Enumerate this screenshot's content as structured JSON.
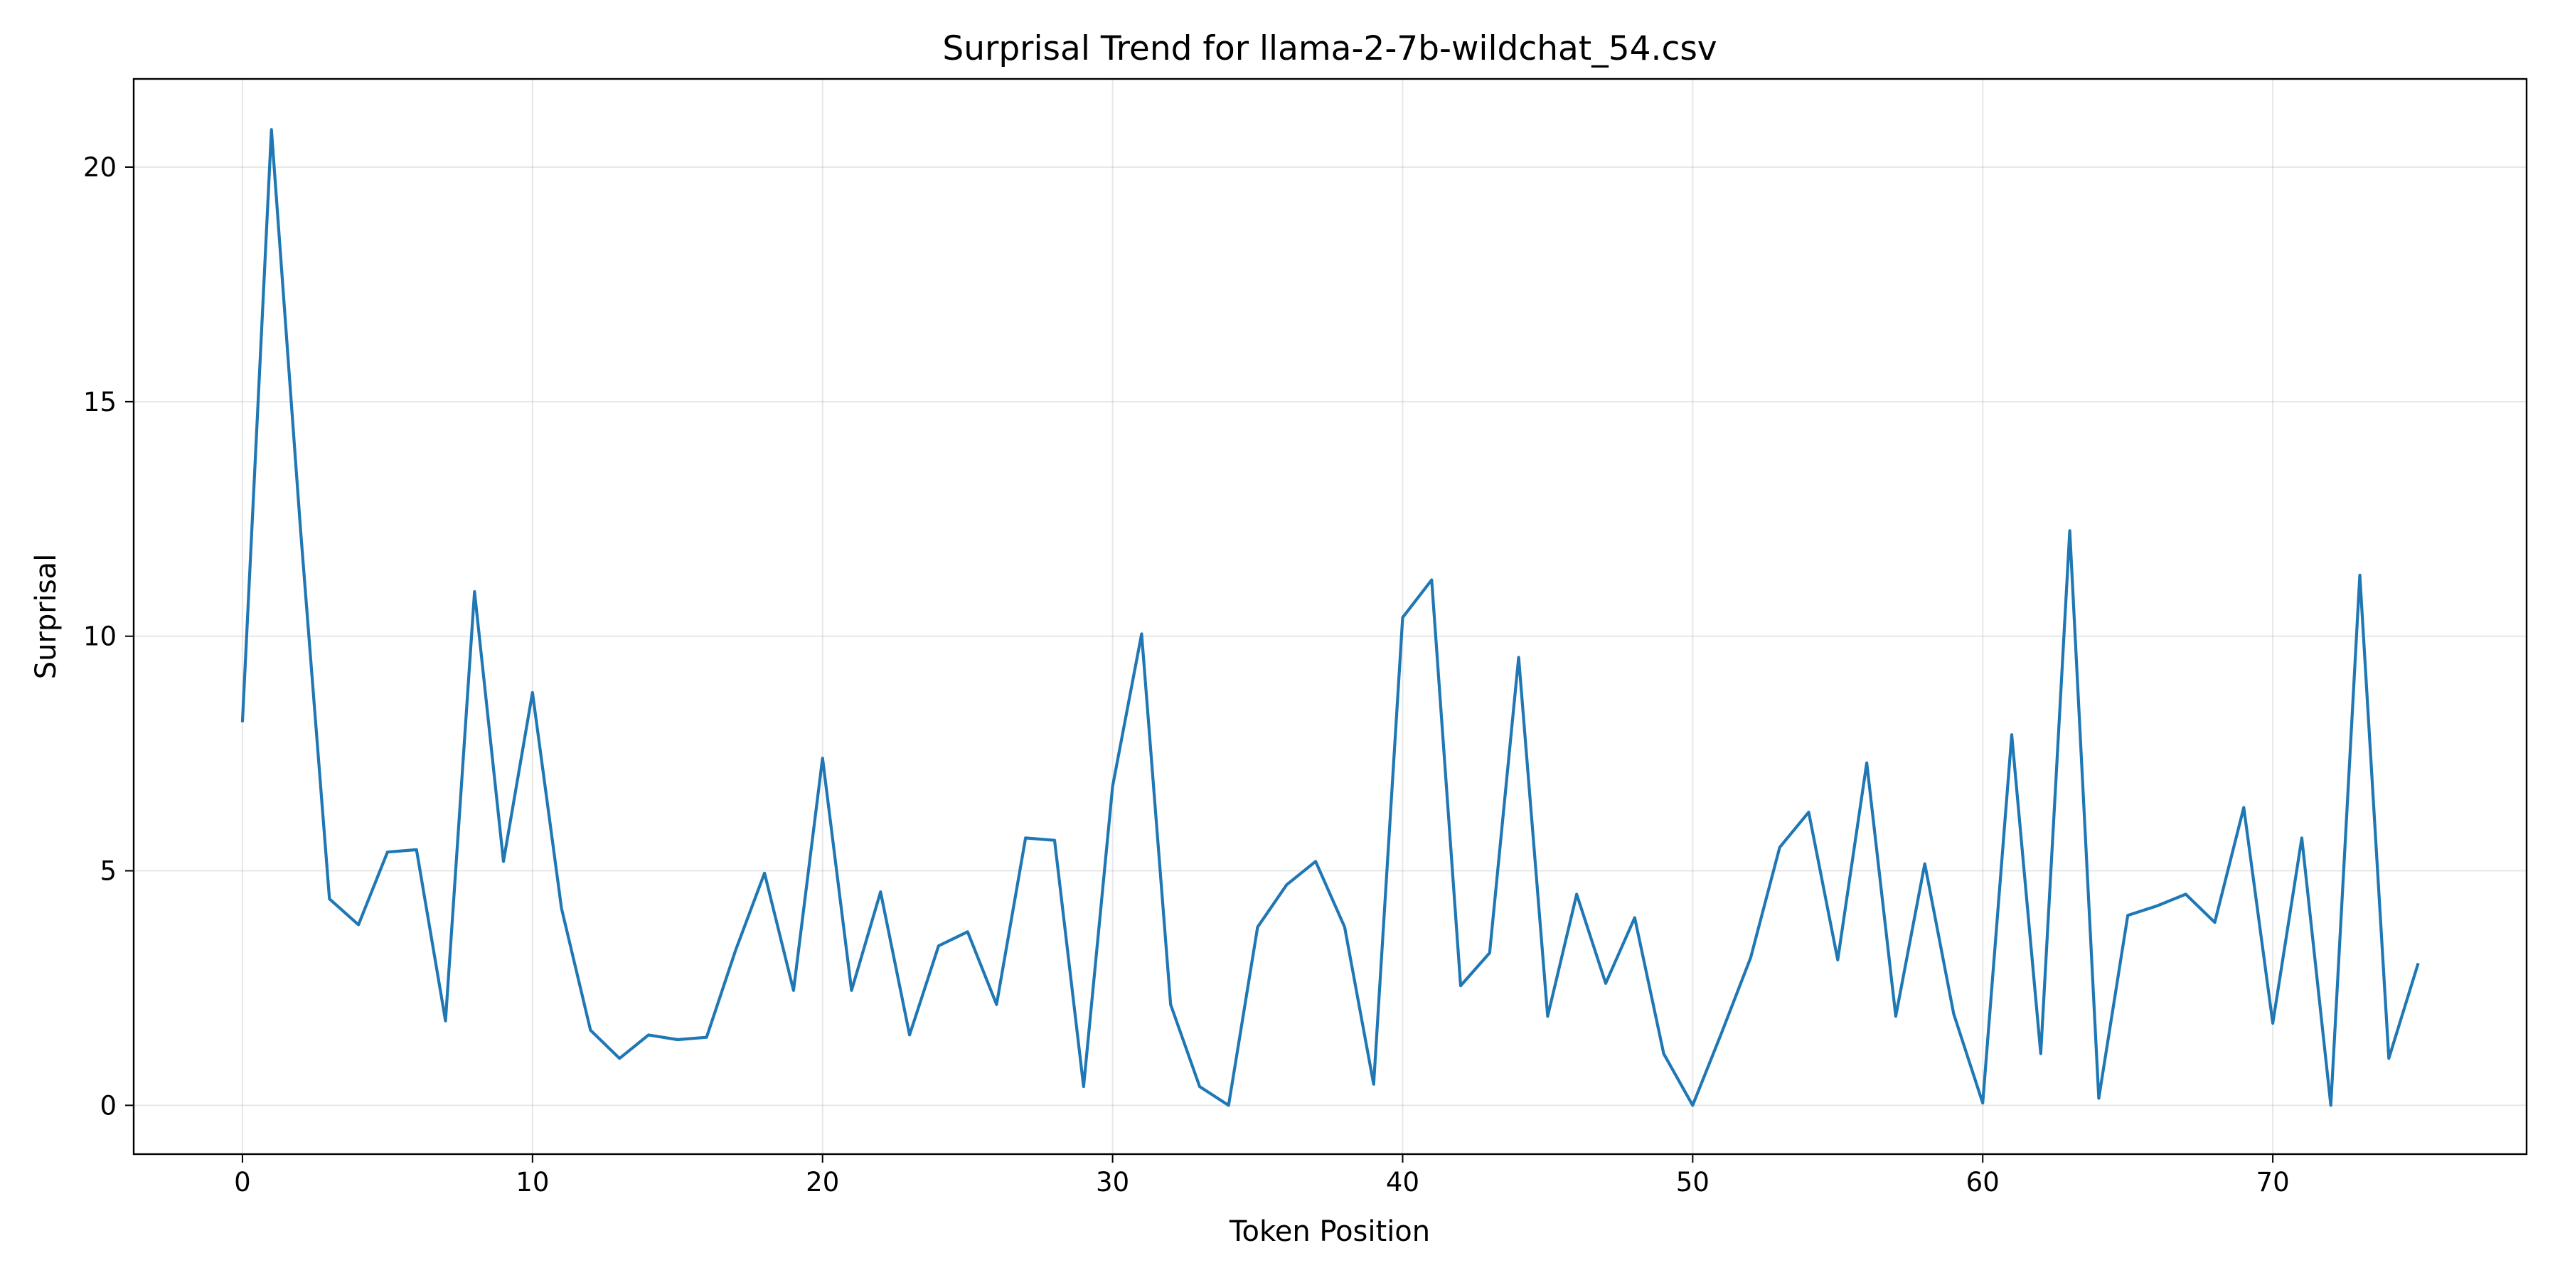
{
  "chart_data": {
    "type": "line",
    "title": "Surprisal Trend for llama-2-7b-wildchat_54.csv",
    "xlabel": "Token Position",
    "ylabel": "Surprisal",
    "xlim": [
      -3.75,
      78.75
    ],
    "ylim": [
      -1.04,
      21.88
    ],
    "xticks": [
      0,
      10,
      20,
      30,
      40,
      50,
      60,
      70
    ],
    "yticks": [
      0,
      5,
      10,
      15,
      20
    ],
    "grid": true,
    "legend": "none",
    "series": [
      {
        "color": "#1f77b4",
        "x": [
          0,
          1,
          2,
          3,
          4,
          5,
          6,
          7,
          8,
          9,
          10,
          11,
          12,
          13,
          14,
          15,
          16,
          17,
          18,
          19,
          20,
          21,
          22,
          23,
          24,
          25,
          26,
          27,
          28,
          29,
          30,
          31,
          32,
          33,
          34,
          35,
          36,
          37,
          38,
          39,
          40,
          41,
          42,
          43,
          44,
          45,
          46,
          47,
          48,
          49,
          50,
          51,
          52,
          53,
          54,
          55,
          56,
          57,
          58,
          59,
          60,
          61,
          62,
          63,
          64,
          65,
          66,
          67,
          68,
          69,
          70,
          71,
          72,
          73,
          74,
          75
        ],
        "values": [
          8.2,
          20.8,
          12.3,
          4.4,
          3.85,
          5.4,
          5.45,
          1.8,
          10.95,
          5.2,
          8.8,
          4.2,
          1.6,
          1.0,
          1.5,
          1.4,
          1.45,
          3.3,
          4.95,
          2.45,
          7.4,
          2.45,
          4.55,
          1.5,
          3.4,
          3.7,
          2.15,
          5.7,
          5.65,
          0.4,
          6.8,
          10.05,
          2.15,
          0.4,
          0.0,
          3.8,
          4.7,
          5.2,
          3.8,
          0.45,
          10.4,
          11.2,
          2.55,
          3.25,
          9.55,
          1.9,
          4.5,
          2.6,
          4.0,
          1.1,
          0.0,
          1.55,
          3.15,
          5.5,
          6.25,
          3.1,
          7.3,
          1.9,
          5.15,
          1.95,
          0.05,
          7.9,
          1.1,
          12.25,
          0.15,
          4.05,
          4.25,
          4.5,
          3.9,
          6.35,
          1.75,
          5.7,
          0.0,
          11.3,
          1.0,
          3.0
        ]
      }
    ]
  }
}
